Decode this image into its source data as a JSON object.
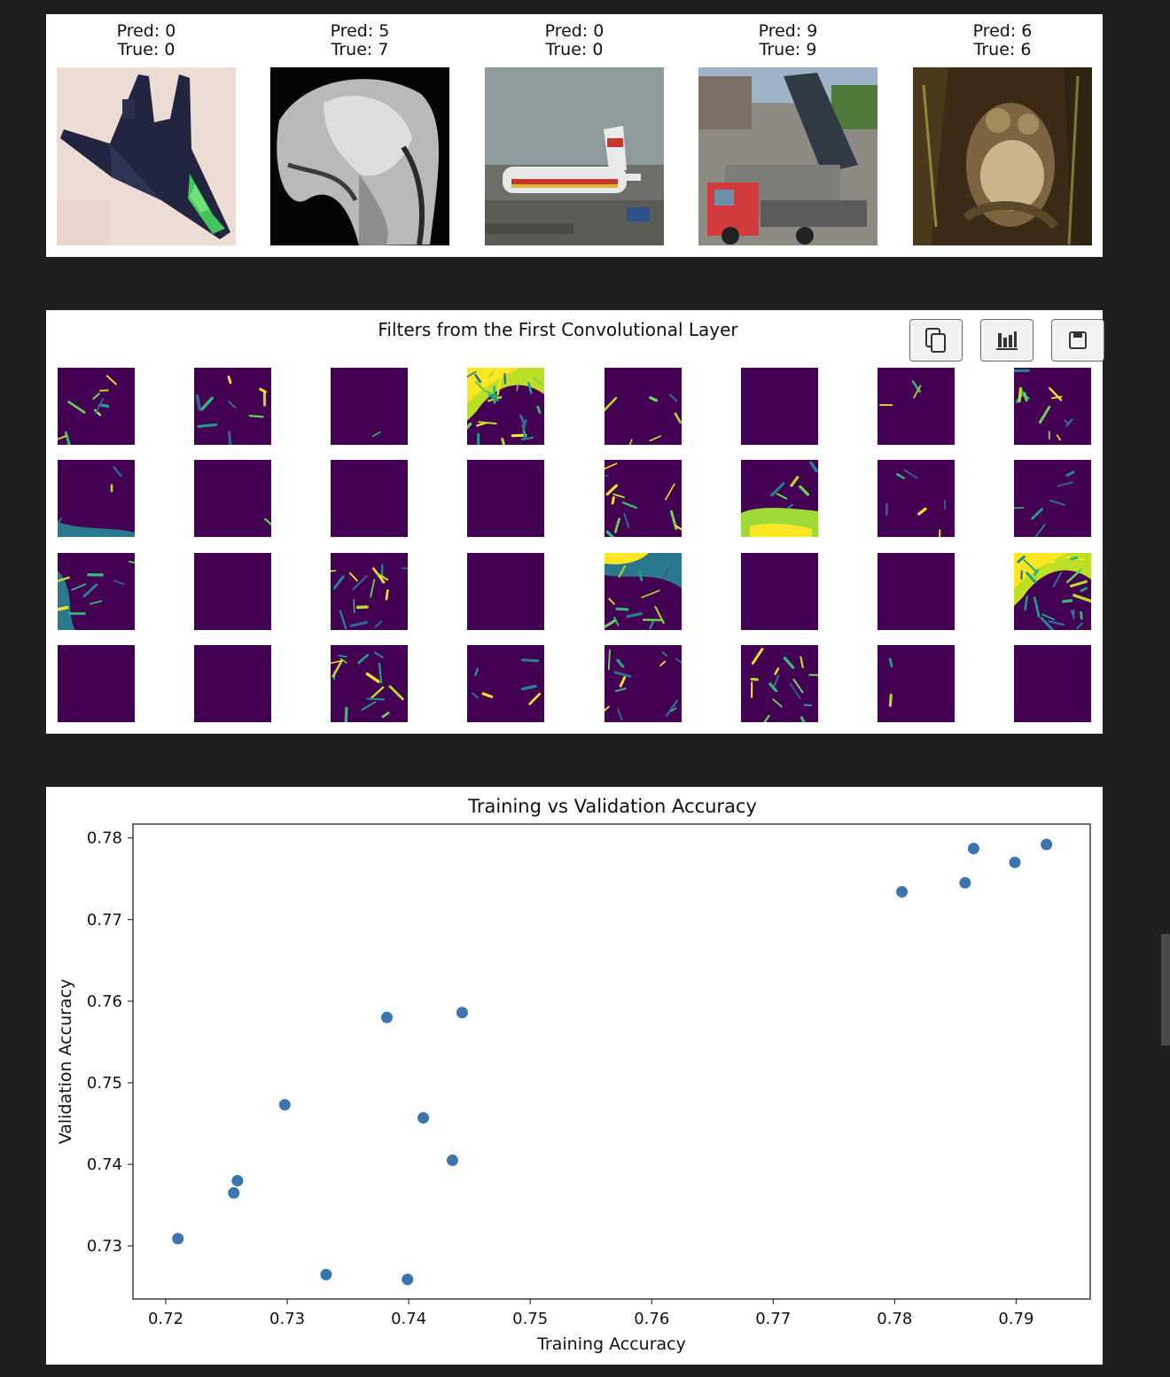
{
  "predictions": [
    {
      "pred_label": "Pred: 0",
      "true_label": "True: 0",
      "image": "stealth-jet-image"
    },
    {
      "pred_label": "Pred: 5",
      "true_label": "True: 7",
      "image": "horse-head-image"
    },
    {
      "pred_label": "Pred: 0",
      "true_label": "True: 0",
      "image": "airliner-image"
    },
    {
      "pred_label": "Pred: 9",
      "true_label": "True: 9",
      "image": "dump-truck-image"
    },
    {
      "pred_label": "Pred: 6",
      "true_label": "True: 6",
      "image": "frog-image"
    }
  ],
  "filters": {
    "title": "Filters from the First Convolutional Layer",
    "rows": 4,
    "cols": 8,
    "colormap": "viridis",
    "toolbar": [
      {
        "name": "copy-button",
        "icon": "copy-icon"
      },
      {
        "name": "chart-button",
        "icon": "bar-chart-icon"
      },
      {
        "name": "save-button",
        "icon": "save-icon"
      }
    ]
  },
  "chart_data": {
    "type": "scatter",
    "title": "Training vs Validation Accuracy",
    "xlabel": "Training Accuracy",
    "ylabel": "Validation Accuracy",
    "xlim": [
      0.7173,
      0.7961
    ],
    "ylim": [
      0.7235,
      0.7817
    ],
    "xticks": [
      "0.72",
      "0.73",
      "0.74",
      "0.75",
      "0.76",
      "0.77",
      "0.78",
      "0.79"
    ],
    "yticks": [
      "0.73",
      "0.74",
      "0.75",
      "0.76",
      "0.77",
      "0.78"
    ],
    "point_color": "#3a75b0",
    "grid": false,
    "points": [
      {
        "x": 0.721,
        "y": 0.7309
      },
      {
        "x": 0.7256,
        "y": 0.7365
      },
      {
        "x": 0.7259,
        "y": 0.738
      },
      {
        "x": 0.7298,
        "y": 0.7473
      },
      {
        "x": 0.7332,
        "y": 0.7265
      },
      {
        "x": 0.7382,
        "y": 0.758
      },
      {
        "x": 0.7399,
        "y": 0.7259
      },
      {
        "x": 0.7412,
        "y": 0.7457
      },
      {
        "x": 0.7436,
        "y": 0.7405
      },
      {
        "x": 0.7444,
        "y": 0.7586
      },
      {
        "x": 0.7806,
        "y": 0.7734
      },
      {
        "x": 0.7858,
        "y": 0.7745
      },
      {
        "x": 0.7865,
        "y": 0.7787
      },
      {
        "x": 0.7899,
        "y": 0.777
      },
      {
        "x": 0.7925,
        "y": 0.7792
      }
    ]
  }
}
